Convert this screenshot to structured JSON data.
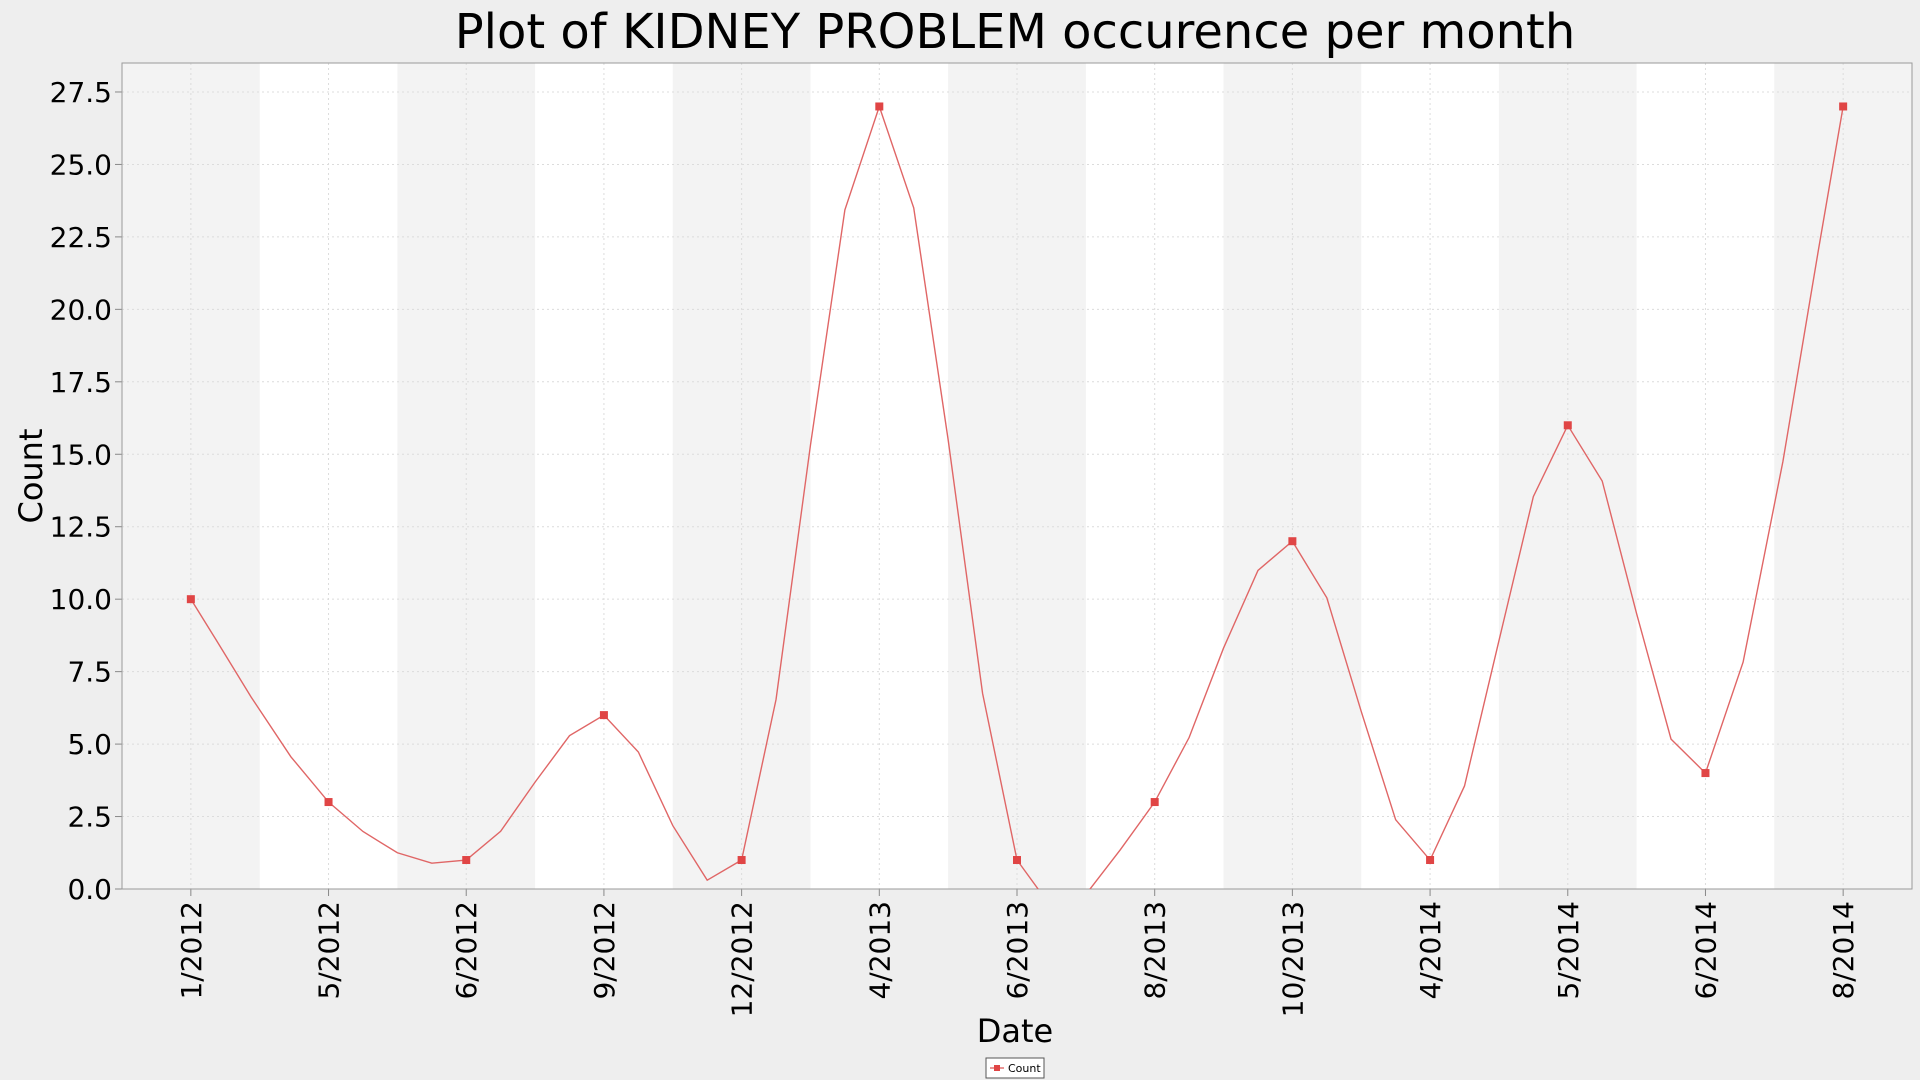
{
  "chart_data": {
    "type": "line",
    "title": "Plot of KIDNEY PROBLEM occurence per month",
    "xlabel": "Date",
    "ylabel": "Count",
    "ylim": [
      0,
      28.5
    ],
    "yticks": [
      "0.0",
      "2.5",
      "5.0",
      "7.5",
      "10.0",
      "12.5",
      "15.0",
      "17.5",
      "20.0",
      "22.5",
      "25.0",
      "27.5"
    ],
    "categories": [
      "1/2012",
      "5/2012",
      "6/2012",
      "9/2012",
      "12/2012",
      "4/2013",
      "6/2013",
      "8/2013",
      "10/2013",
      "4/2014",
      "5/2014",
      "6/2014",
      "8/2014"
    ],
    "series": [
      {
        "name": "Count",
        "values": [
          10,
          3,
          1,
          6,
          1,
          27,
          1,
          3,
          12,
          1,
          16,
          4,
          27
        ]
      }
    ],
    "grid": true,
    "legend": "bottom-center",
    "colors": {
      "series": "#e06666",
      "marker": "#e04545",
      "band": "#f3f3f3",
      "plot_bg": "#ffffff",
      "grid": "#dcdcdc"
    }
  }
}
